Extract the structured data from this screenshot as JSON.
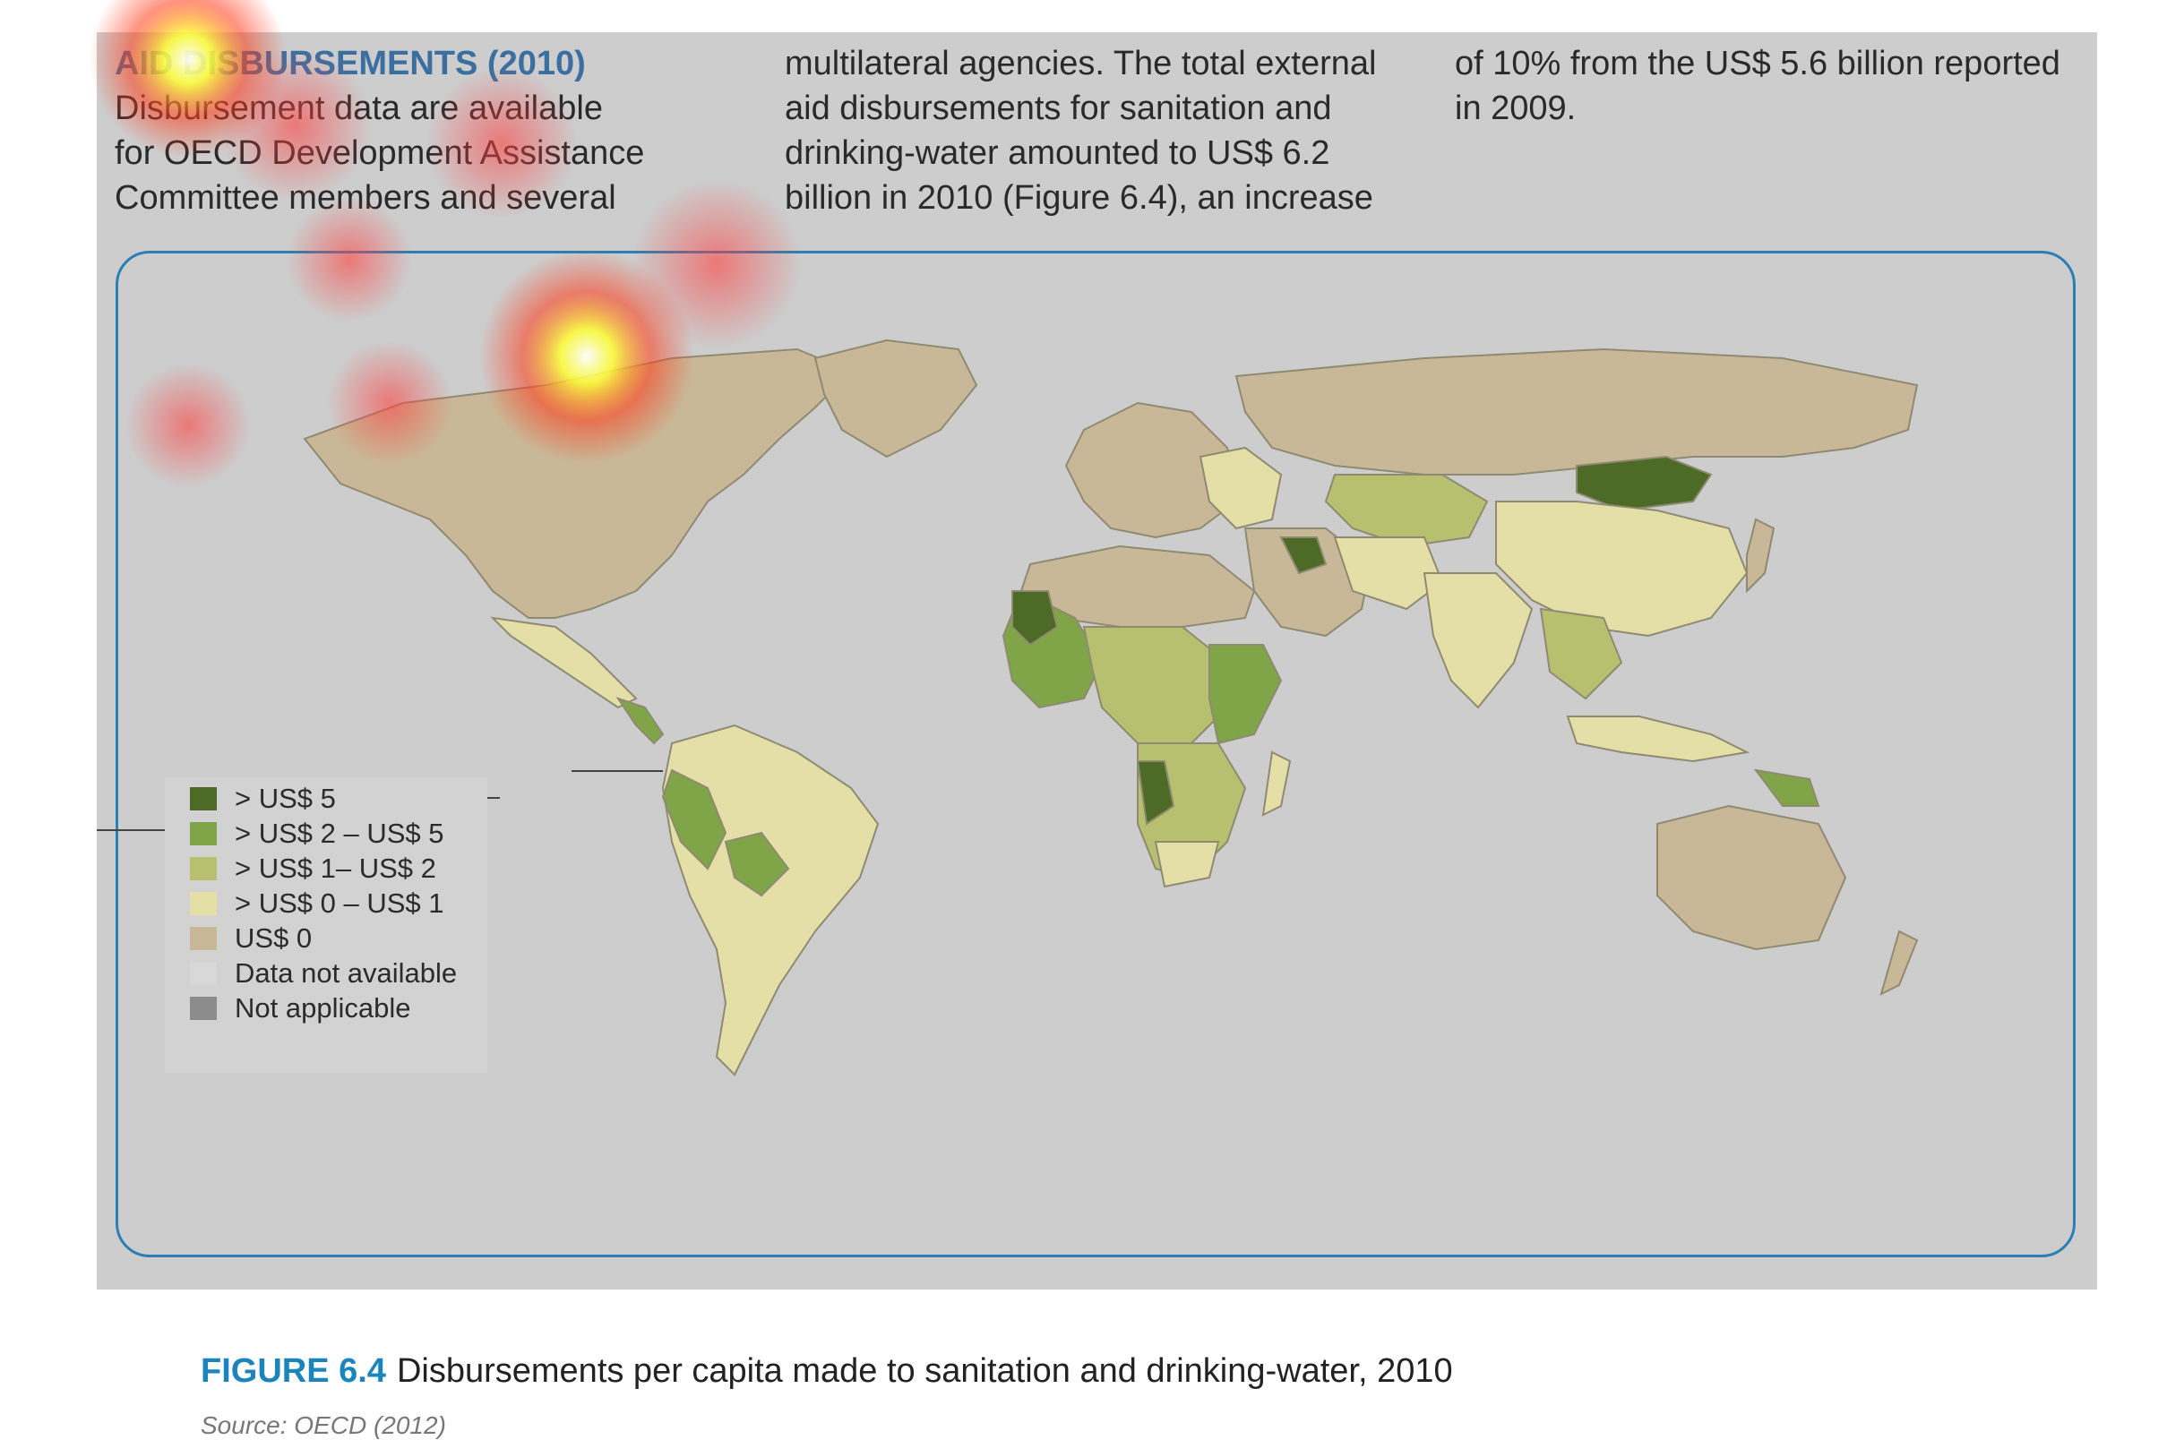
{
  "text": {
    "heading": "AID DISBURSEMENTS (2010)",
    "col1_lines": [
      "Disbursement data are available",
      "for OECD Development Assistance",
      "Committee members and several"
    ],
    "col2_lines": [
      "multilateral agencies. The total external",
      "aid disbursements for sanitation and",
      "drinking-water amounted to US$ 6.2",
      "billion in 2010 (Figure 6.4), an increase"
    ],
    "col3_lines": [
      "of 10% from the US$ 5.6 billion reported",
      "in 2009."
    ]
  },
  "legend": {
    "items": [
      {
        "label": "> US$ 5",
        "color": "#4d6b26"
      },
      {
        "label": "> US$ 2 – US$ 5",
        "color": "#7fa548"
      },
      {
        "label": "> US$ 1– US$ 2",
        "color": "#b7c06f"
      },
      {
        "label": "> US$ 0 – US$ 1",
        "color": "#e4dfa6"
      },
      {
        "label": "US$ 0",
        "color": "#c9b897"
      },
      {
        "label": "Data not available",
        "color": "#d8d8d8"
      },
      {
        "label": "Not applicable",
        "color": "#8c8c8c"
      }
    ]
  },
  "caption": {
    "label": "FIGURE 6.4",
    "text": "Disbursements per capita made to sanitation and drinking-water, 2010"
  },
  "source": "Source: OECD (2012)",
  "colors": {
    "ocean": "#cdcdcd",
    "frame": "#2a7fb4",
    "heading": "#3b6fa0",
    "caption_label": "#1a84bf"
  }
}
